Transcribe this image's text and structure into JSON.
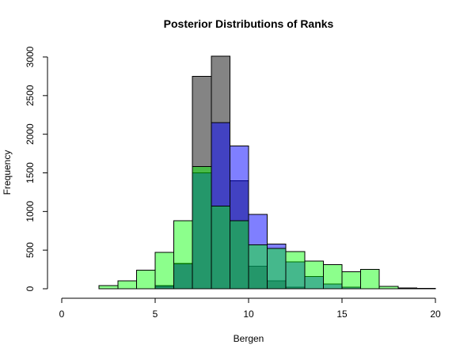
{
  "chart_data": {
    "type": "bar",
    "title": "Posterior Distributions of Ranks",
    "xlabel": "Bergen",
    "ylabel": "Frequency",
    "xlim": [
      0,
      20
    ],
    "ylim": [
      0,
      3000
    ],
    "xticks": [
      0,
      5,
      10,
      15,
      20
    ],
    "yticks": [
      0,
      500,
      1000,
      1500,
      2000,
      2500,
      3000
    ],
    "grid": false,
    "bin_width": 1,
    "series": [
      {
        "color": "#80808099",
        "fill": "#808080",
        "bins": [
          {
            "x0": 5,
            "x1": 6,
            "y": 30
          },
          {
            "x0": 6,
            "x1": 7,
            "y": 330
          },
          {
            "x0": 7,
            "x1": 8,
            "y": 2750
          },
          {
            "x0": 8,
            "x1": 9,
            "y": 3010
          },
          {
            "x0": 9,
            "x1": 10,
            "y": 1400
          },
          {
            "x0": 10,
            "x1": 11,
            "y": 290
          },
          {
            "x0": 11,
            "x1": 12,
            "y": 100
          },
          {
            "x0": 12,
            "x1": 13,
            "y": 20
          }
        ]
      },
      {
        "color": "#0000ff",
        "fill": "#0000ff",
        "bins": [
          {
            "x0": 5,
            "x1": 6,
            "y": 40
          },
          {
            "x0": 6,
            "x1": 7,
            "y": 320
          },
          {
            "x0": 7,
            "x1": 8,
            "y": 1500
          },
          {
            "x0": 8,
            "x1": 9,
            "y": 2150
          },
          {
            "x0": 9,
            "x1": 10,
            "y": 1850
          },
          {
            "x0": 10,
            "x1": 11,
            "y": 960
          },
          {
            "x0": 11,
            "x1": 12,
            "y": 580
          },
          {
            "x0": 12,
            "x1": 13,
            "y": 350
          },
          {
            "x0": 13,
            "x1": 14,
            "y": 160
          },
          {
            "x0": 14,
            "x1": 15,
            "y": 60
          },
          {
            "x0": 15,
            "x1": 16,
            "y": 20
          }
        ]
      },
      {
        "color": "#00cc00",
        "fill": "#00ff00",
        "bins": [
          {
            "x0": 2,
            "x1": 3,
            "y": 40
          },
          {
            "x0": 3,
            "x1": 4,
            "y": 100
          },
          {
            "x0": 4,
            "x1": 5,
            "y": 240
          },
          {
            "x0": 5,
            "x1": 6,
            "y": 470
          },
          {
            "x0": 6,
            "x1": 7,
            "y": 880
          },
          {
            "x0": 7,
            "x1": 8,
            "y": 1580
          },
          {
            "x0": 8,
            "x1": 9,
            "y": 1070
          },
          {
            "x0": 9,
            "x1": 10,
            "y": 880
          },
          {
            "x0": 10,
            "x1": 11,
            "y": 570
          },
          {
            "x0": 11,
            "x1": 12,
            "y": 520
          },
          {
            "x0": 12,
            "x1": 13,
            "y": 480
          },
          {
            "x0": 13,
            "x1": 14,
            "y": 360
          },
          {
            "x0": 14,
            "x1": 15,
            "y": 310
          },
          {
            "x0": 15,
            "x1": 16,
            "y": 220
          },
          {
            "x0": 16,
            "x1": 17,
            "y": 250
          },
          {
            "x0": 17,
            "x1": 18,
            "y": 30
          },
          {
            "x0": 18,
            "x1": 19,
            "y": 10
          },
          {
            "x0": 19,
            "x1": 20,
            "y": 5
          }
        ]
      }
    ]
  }
}
